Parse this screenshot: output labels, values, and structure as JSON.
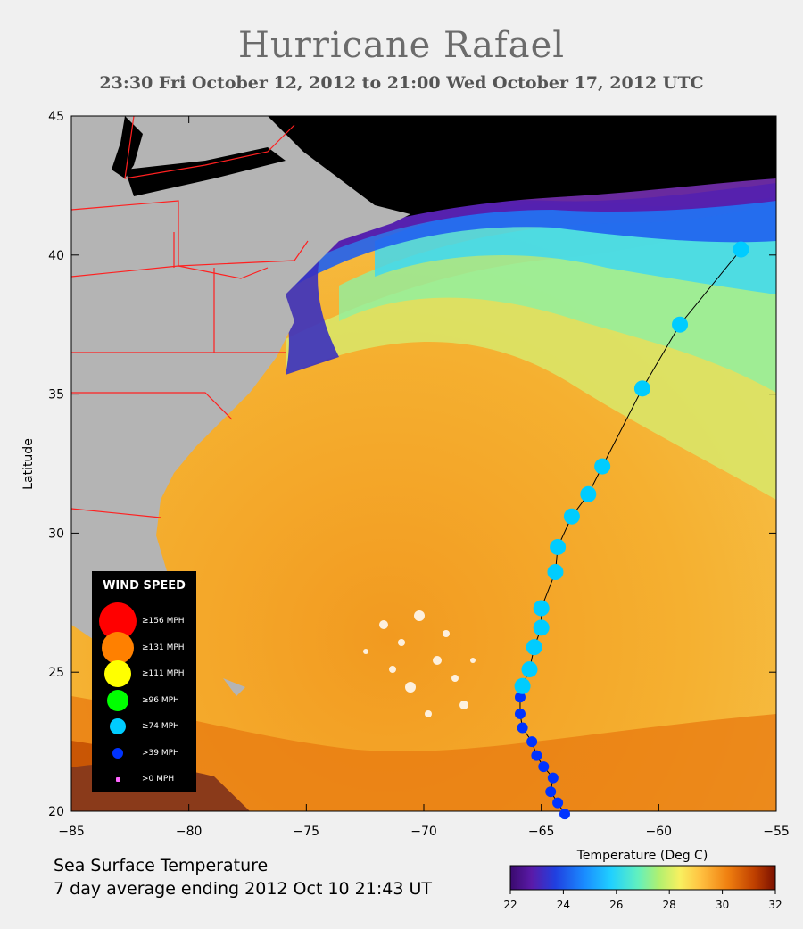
{
  "title": "Hurricane Rafael",
  "subtitle": "23:30 Fri October 12, 2012 to 21:00 Wed October 17, 2012  UTC",
  "map": {
    "ylabel": "Latitude",
    "x_ticks": [
      "−85",
      "−80",
      "−75",
      "−70",
      "−65",
      "−60",
      "−55"
    ],
    "y_ticks": [
      "20",
      "25",
      "30",
      "35",
      "40",
      "45"
    ],
    "lon_range": [
      -85,
      -55
    ],
    "lat_range": [
      20,
      45
    ]
  },
  "track": [
    {
      "lon": -64.0,
      "lat": 19.9,
      "cat": "ts"
    },
    {
      "lon": -64.3,
      "lat": 20.3,
      "cat": "ts"
    },
    {
      "lon": -64.6,
      "lat": 20.7,
      "cat": "ts"
    },
    {
      "lon": -64.5,
      "lat": 21.2,
      "cat": "ts"
    },
    {
      "lon": -64.9,
      "lat": 21.6,
      "cat": "ts"
    },
    {
      "lon": -65.2,
      "lat": 22.0,
      "cat": "ts"
    },
    {
      "lon": -65.4,
      "lat": 22.5,
      "cat": "ts"
    },
    {
      "lon": -65.8,
      "lat": 23.0,
      "cat": "ts"
    },
    {
      "lon": -65.9,
      "lat": 23.5,
      "cat": "ts"
    },
    {
      "lon": -65.9,
      "lat": 24.1,
      "cat": "ts"
    },
    {
      "lon": -65.8,
      "lat": 24.5,
      "cat": "h1"
    },
    {
      "lon": -65.5,
      "lat": 25.1,
      "cat": "h1"
    },
    {
      "lon": -65.3,
      "lat": 25.9,
      "cat": "h1"
    },
    {
      "lon": -65.0,
      "lat": 26.6,
      "cat": "h1"
    },
    {
      "lon": -65.0,
      "lat": 27.3,
      "cat": "h1"
    },
    {
      "lon": -64.4,
      "lat": 28.6,
      "cat": "h1"
    },
    {
      "lon": -64.3,
      "lat": 29.5,
      "cat": "h1"
    },
    {
      "lon": -63.7,
      "lat": 30.6,
      "cat": "h1"
    },
    {
      "lon": -63.0,
      "lat": 31.4,
      "cat": "h1"
    },
    {
      "lon": -62.4,
      "lat": 32.4,
      "cat": "h1"
    },
    {
      "lon": -60.7,
      "lat": 35.2,
      "cat": "h1"
    },
    {
      "lon": -59.1,
      "lat": 37.5,
      "cat": "h1"
    },
    {
      "lon": -56.5,
      "lat": 40.2,
      "cat": "h1"
    }
  ],
  "legend": {
    "title": "WIND SPEED",
    "items": [
      {
        "label": "≥156 MPH",
        "color": "#ff0000",
        "size": 5
      },
      {
        "label": "≥131 MPH",
        "color": "#ff8000",
        "size": 4
      },
      {
        "label": "≥111 MPH",
        "color": "#ffff00",
        "size": 3
      },
      {
        "label": "≥96 MPH",
        "color": "#00ff00",
        "size": 2
      },
      {
        "label": "≥74 MPH",
        "color": "#00ccff",
        "size": 1
      },
      {
        "label": ">39 MPH",
        "color": "#0033ff",
        "size": 0
      },
      {
        "label": ">0 MPH",
        "color": "#ff66ff",
        "size": -1
      }
    ]
  },
  "sst_label": {
    "line1": "Sea Surface Temperature",
    "line2": "7 day average ending 2012 Oct 10 21:43 UT"
  },
  "colorbar": {
    "title": "Temperature (Deg C)",
    "ticks": [
      "22",
      "24",
      "26",
      "28",
      "30",
      "32"
    ]
  },
  "colors": {
    "land": "#b4b4b4",
    "cold_water": "#000000",
    "warm": "#f5a020",
    "tropical_storm": "#0033ff",
    "hurricane": "#00ccff",
    "borders": "#ff0000"
  }
}
